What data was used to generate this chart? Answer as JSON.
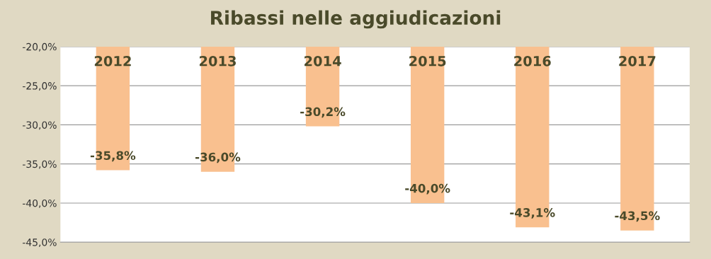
{
  "chart_data": {
    "type": "bar",
    "title": "Ribassi nelle aggiudicazioni",
    "categories": [
      "2012",
      "2013",
      "2014",
      "2015",
      "2016",
      "2017"
    ],
    "values": [
      -35.8,
      -36.0,
      -30.2,
      -40.0,
      -43.1,
      -43.5
    ],
    "value_labels": [
      "-35,8%",
      "-36,0%",
      "-30,2%",
      "-40,0%",
      "-43,1%",
      "-43,5%"
    ],
    "color": "#f9c08f",
    "ylim": [
      -45,
      -20
    ],
    "yticks": [
      {
        "value": -45,
        "label": "-45,0%"
      },
      {
        "value": -40,
        "label": "-40,0%"
      },
      {
        "value": -35,
        "label": "-35,0%"
      },
      {
        "value": -30,
        "label": "-30,0%"
      },
      {
        "value": -25,
        "label": "-25,0%"
      },
      {
        "value": -20,
        "label": "-20,0%"
      }
    ],
    "grid": "y"
  }
}
